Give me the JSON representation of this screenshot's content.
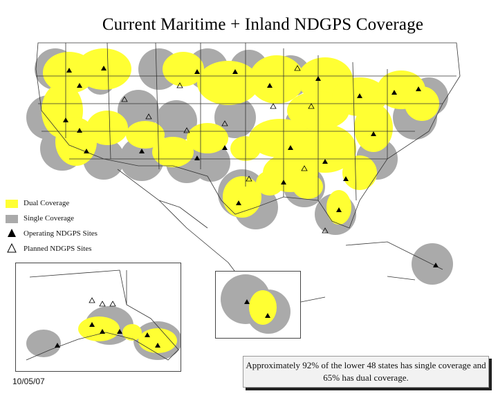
{
  "title": "Current Maritime + Inland NDGPS Coverage",
  "legend": {
    "items": [
      {
        "label": "Dual Coverage",
        "kind": "swatch",
        "color": "#ffff33"
      },
      {
        "label": "Single Coverage",
        "kind": "swatch",
        "color": "#aaaaaa"
      },
      {
        "label": "Operating NDGPS Sites",
        "kind": "site-operating"
      },
      {
        "label": "Planned NDGPS Sites",
        "kind": "site-planned"
      }
    ]
  },
  "date": "10/05/07",
  "note": "Approximately 92% of the lower 48 states has single coverage and 65% has dual coverage.",
  "colors": {
    "dual": "#ffff33",
    "single": "#aaaaaa",
    "border": "#333333",
    "site": "#000000"
  }
}
